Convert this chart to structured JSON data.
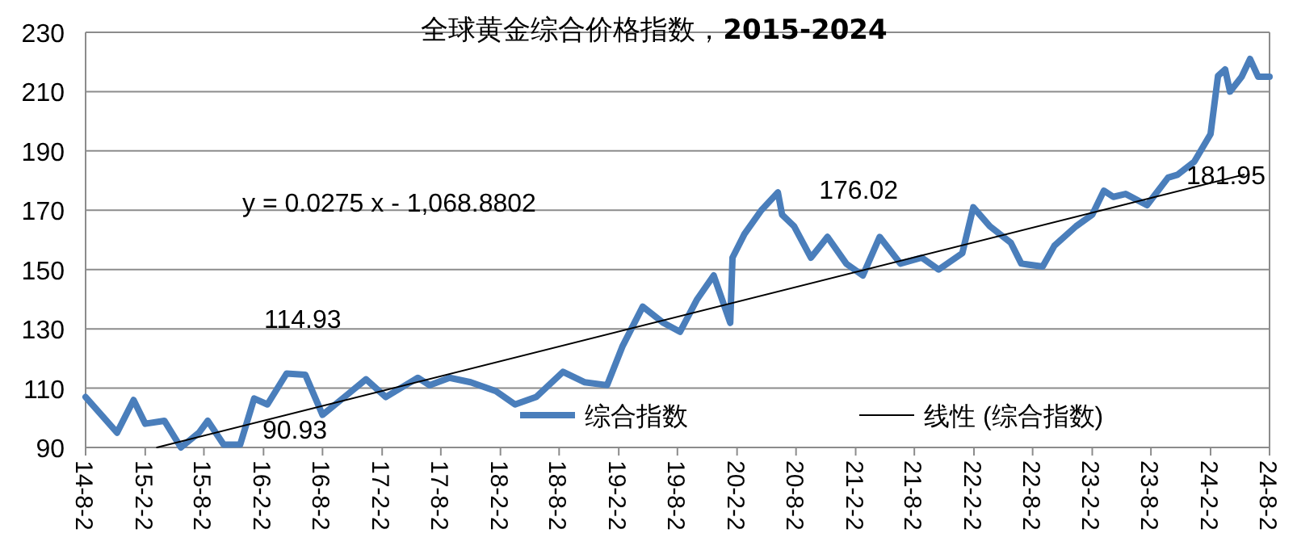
{
  "chart_data": {
    "type": "line",
    "title": "全球黄金综合价格指数，**2015-2024**",
    "xlim": [
      "2014-08-20",
      "2024-08-20"
    ],
    "xticks": [
      {
        "value": "2014-08-20",
        "label": "14-8-2"
      },
      {
        "value": "2015-02-20",
        "label": "15-2-2"
      },
      {
        "value": "2015-08-20",
        "label": "15-8-2"
      },
      {
        "value": "2016-02-20",
        "label": "16-2-2"
      },
      {
        "value": "2016-08-20",
        "label": "16-8-2"
      },
      {
        "value": "2017-02-20",
        "label": "17-2-2"
      },
      {
        "value": "2017-08-20",
        "label": "17-8-2"
      },
      {
        "value": "2018-02-20",
        "label": "18-2-2"
      },
      {
        "value": "2018-08-20",
        "label": "18-8-2"
      },
      {
        "value": "2019-02-20",
        "label": "19-2-2"
      },
      {
        "value": "2019-08-20",
        "label": "19-8-2"
      },
      {
        "value": "2020-02-20",
        "label": "20-2-2"
      },
      {
        "value": "2020-08-20",
        "label": "20-8-2"
      },
      {
        "value": "2021-02-20",
        "label": "21-2-2"
      },
      {
        "value": "2021-08-20",
        "label": "21-8-2"
      },
      {
        "value": "2022-02-20",
        "label": "22-2-2"
      },
      {
        "value": "2022-08-20",
        "label": "22-8-2"
      },
      {
        "value": "2023-02-20",
        "label": "23-2-2"
      },
      {
        "value": "2023-08-20",
        "label": "23-8-2"
      },
      {
        "value": "2024-02-20",
        "label": "24-2-2"
      },
      {
        "value": "2024-08-20",
        "label": "24-8-2"
      }
    ],
    "ylim": [
      90,
      230
    ],
    "yticks": [
      90,
      110,
      130,
      150,
      170,
      190,
      210,
      230
    ],
    "grid": "y",
    "legend": "bottom",
    "series": [
      {
        "name": "综合指数",
        "color": "#4a7ebb",
        "x": [
          "2014-08-20",
          "2014-11-25",
          "2015-01-15",
          "2015-02-20",
          "2015-04-20",
          "2015-06-10",
          "2015-08-05",
          "2015-09-01",
          "2015-10-20",
          "2015-12-10",
          "2016-01-22",
          "2016-03-03",
          "2016-05-01",
          "2016-06-28",
          "2016-08-20",
          "2016-11-01",
          "2017-01-01",
          "2017-03-03",
          "2017-06-10",
          "2017-07-16",
          "2017-09-16",
          "2017-11-20",
          "2018-02-06",
          "2018-04-06",
          "2018-06-10",
          "2018-09-01",
          "2018-11-06",
          "2019-01-15",
          "2019-03-03",
          "2019-05-05",
          "2019-07-08",
          "2019-08-28",
          "2019-10-20",
          "2019-12-10",
          "2020-01-30",
          "2020-02-06",
          "2020-03-14",
          "2020-05-05",
          "2020-06-25",
          "2020-07-08",
          "2020-08-14",
          "2020-10-05",
          "2020-11-25",
          "2021-01-22",
          "2021-03-14",
          "2021-05-05",
          "2021-07-08",
          "2021-09-12",
          "2021-11-03",
          "2022-01-15",
          "2022-02-18",
          "2022-04-10",
          "2022-06-14",
          "2022-07-16",
          "2022-09-20",
          "2022-10-26",
          "2023-01-01",
          "2023-02-20",
          "2023-03-28",
          "2023-04-26",
          "2023-06-03",
          "2023-08-08",
          "2023-10-12",
          "2023-11-10",
          "2024-01-01",
          "2024-02-20",
          "2024-03-14",
          "2024-04-05",
          "2024-04-20",
          "2024-05-26",
          "2024-06-21",
          "2024-07-16",
          "2024-08-20"
        ],
        "values": [
          107,
          95,
          106,
          98,
          99,
          90,
          95,
          99,
          90.93,
          91,
          106.5,
          104.5,
          114.93,
          114.5,
          101,
          107.5,
          113,
          107,
          113.5,
          111,
          113.5,
          112,
          109,
          104.5,
          107,
          115.5,
          112,
          111,
          124,
          137.5,
          132,
          129,
          140,
          148,
          132,
          154,
          162,
          170,
          176.02,
          168.5,
          164.6,
          154,
          161,
          152,
          148,
          161,
          152,
          154,
          150,
          155.5,
          171,
          164.6,
          159,
          152,
          151,
          158,
          164.6,
          168.5,
          176.6,
          174.5,
          175.5,
          171.7,
          181,
          181.95,
          186.4,
          195.7,
          215.3,
          217.5,
          210,
          215,
          221,
          215,
          215
        ]
      },
      {
        "name": "线性 (综合指数)",
        "color": "#000000",
        "x": [
          "2015-03-28",
          "2024-06-02"
        ],
        "values": [
          90,
          182
        ]
      }
    ],
    "annotations": [
      "y = 0.0275 x - 1,068.8802",
      {
        "text": "114.93",
        "x": "2016-05-01",
        "y": 114.93
      },
      {
        "text": "90.93",
        "x": "2015-10-20",
        "y": 90.93
      },
      {
        "text": "176.02",
        "x": "2020-06-25",
        "y": 176.02
      },
      {
        "text": "181.95",
        "x": "2023-11-10",
        "y": 181.95
      }
    ]
  }
}
